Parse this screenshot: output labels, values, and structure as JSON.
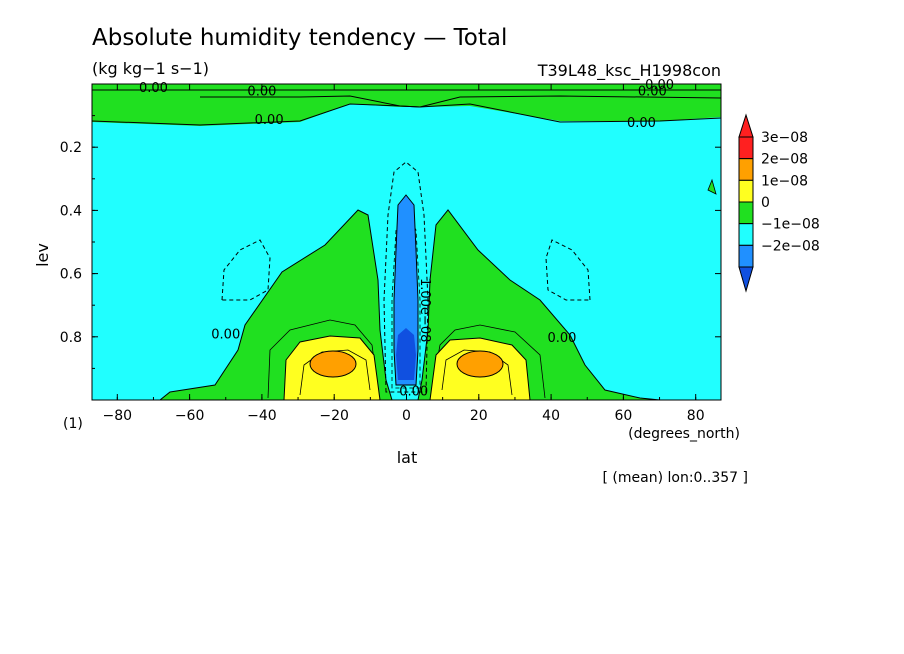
{
  "chart_data": {
    "type": "heatmap",
    "title": "Absolute humidity tendency — Total",
    "units": "(kg kg−1 s−1)",
    "run_name": "T39L48_ksc_H1998con",
    "xlabel": "lat",
    "xunits": "(degrees_north)",
    "ylabel": "lev",
    "yunits": "(1)",
    "footnote": "[ (mean) lon:0..357 ]",
    "xlim": [
      -87,
      87
    ],
    "ylim": [
      0.0,
      1.0
    ],
    "y_reversed": true,
    "xticks": [
      {
        "value": -80,
        "label": "−80"
      },
      {
        "value": -60,
        "label": "−60"
      },
      {
        "value": -40,
        "label": "−40"
      },
      {
        "value": -20,
        "label": "−20"
      },
      {
        "value": 0,
        "label": "0"
      },
      {
        "value": 20,
        "label": "20"
      },
      {
        "value": 40,
        "label": "40"
      },
      {
        "value": 60,
        "label": "60"
      },
      {
        "value": 80,
        "label": "80"
      }
    ],
    "yticks": [
      {
        "value": 0.2,
        "label": "0.2"
      },
      {
        "value": 0.4,
        "label": "0.4"
      },
      {
        "value": 0.6,
        "label": "0.6"
      },
      {
        "value": 0.8,
        "label": "0.8"
      }
    ],
    "colorbar": {
      "levels": [
        {
          "label": "3e−08",
          "color": "#ff2020"
        },
        {
          "label": "2e−08",
          "color": "#ffa000"
        },
        {
          "label": "1e−08",
          "color": "#ffff20"
        },
        {
          "label": "0",
          "color": "#20e020"
        },
        {
          "label": "−1e−08",
          "color": "#20ffff"
        },
        {
          "label": "−2e−08",
          "color": "#2090ff"
        }
      ],
      "top_arrow_color": "#ff2020",
      "bottom_arrow_color": "#1050e0"
    },
    "background_color": "#20ffff",
    "contour_labels": [
      {
        "text": "0.00",
        "lat": -70,
        "lev": 0.01
      },
      {
        "text": "0.00",
        "lat": -40,
        "lev": 0.02
      },
      {
        "text": "0.00",
        "lat": 68,
        "lev": 0.02
      },
      {
        "text": "0.00",
        "lat": 70,
        "lev": 0.0
      },
      {
        "text": "0.00",
        "lat": -38,
        "lev": 0.11
      },
      {
        "text": "0.00",
        "lat": 65,
        "lev": 0.12
      },
      {
        "text": "0.00",
        "lat": -50,
        "lev": 0.79
      },
      {
        "text": "0.00",
        "lat": 43,
        "lev": 0.8
      },
      {
        "text": "1.00e−08",
        "lat": 4,
        "lev": 0.7,
        "rotate": 90
      },
      {
        "text": "0.00",
        "lat": 2,
        "lev": 0.97
      }
    ],
    "regions": {
      "upper_green_band": {
        "lev_top": 0.0,
        "lev_bottom": 0.08,
        "value": "0 to 1e-08"
      },
      "tropical_dry_core": {
        "lat": [
          -5,
          5
        ],
        "lev": [
          0.3,
          0.98
        ],
        "min": "below -2e-08"
      },
      "subtropical_maxima": [
        {
          "lat_center": -20,
          "lev_center": 0.87,
          "max": "2e-08 to 3e-08"
        },
        {
          "lat_center": 20,
          "lev_center": 0.87,
          "max": "2e-08 to 3e-08"
        }
      ]
    }
  }
}
